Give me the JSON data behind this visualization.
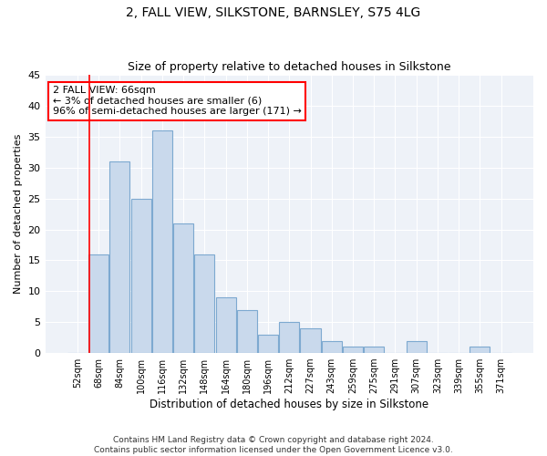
{
  "title": "2, FALL VIEW, SILKSTONE, BARNSLEY, S75 4LG",
  "subtitle": "Size of property relative to detached houses in Silkstone",
  "xlabel": "Distribution of detached houses by size in Silkstone",
  "ylabel": "Number of detached properties",
  "bar_labels": [
    "52sqm",
    "68sqm",
    "84sqm",
    "100sqm",
    "116sqm",
    "132sqm",
    "148sqm",
    "164sqm",
    "180sqm",
    "196sqm",
    "212sqm",
    "227sqm",
    "243sqm",
    "259sqm",
    "275sqm",
    "291sqm",
    "307sqm",
    "323sqm",
    "339sqm",
    "355sqm",
    "371sqm"
  ],
  "bar_values": [
    0,
    16,
    31,
    25,
    36,
    21,
    16,
    9,
    7,
    3,
    5,
    4,
    2,
    1,
    1,
    0,
    2,
    0,
    0,
    1,
    0
  ],
  "bar_color": "#c9d9ec",
  "bar_edge_color": "#7da9d0",
  "ylim": [
    0,
    45
  ],
  "yticks": [
    0,
    5,
    10,
    15,
    20,
    25,
    30,
    35,
    40,
    45
  ],
  "annotation_line1": "2 FALL VIEW: 66sqm",
  "annotation_line2": "← 3% of detached houses are smaller (6)",
  "annotation_line3": "96% of semi-detached houses are larger (171) →",
  "annotation_box_color": "white",
  "annotation_box_edge_color": "red",
  "marker_line_color": "red",
  "bg_color": "#eef2f8",
  "grid_color": "white",
  "footer1": "Contains HM Land Registry data © Crown copyright and database right 2024.",
  "footer2": "Contains public sector information licensed under the Open Government Licence v3.0."
}
